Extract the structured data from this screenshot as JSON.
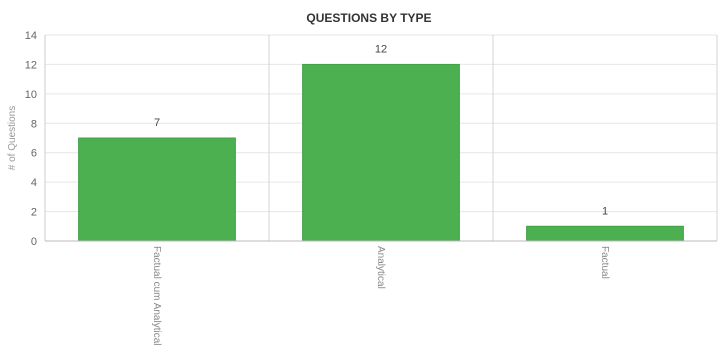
{
  "chart_data": {
    "type": "bar",
    "title": "QUESTIONS BY TYPE",
    "xlabel": "",
    "ylabel": "# of Questions",
    "categories": [
      "Factual cum Analytical",
      "Analytical",
      "Factual"
    ],
    "values": [
      7,
      12,
      1
    ],
    "ylim": [
      0,
      14
    ],
    "yticks": [
      0,
      2,
      4,
      6,
      8,
      10,
      12,
      14
    ],
    "grid": true,
    "legend": "none",
    "bar_color": "#4caf50"
  }
}
